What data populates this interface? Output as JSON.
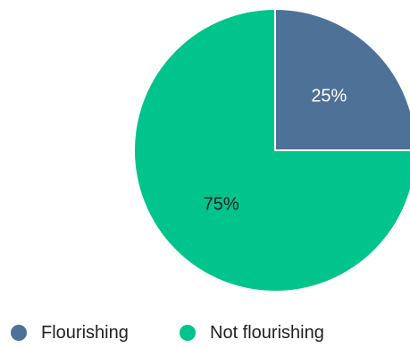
{
  "chart_data": {
    "type": "pie",
    "title": "",
    "slices": [
      {
        "label": "Flourishing",
        "value": 25,
        "display": "25%",
        "color": "#4e7198",
        "text_color": "#ffffff"
      },
      {
        "label": "Not flourishing",
        "value": 75,
        "display": "75%",
        "color": "#00c48c",
        "text_color": "#222222"
      }
    ],
    "legend_position": "bottom",
    "start_angle": "top, clockwise"
  }
}
